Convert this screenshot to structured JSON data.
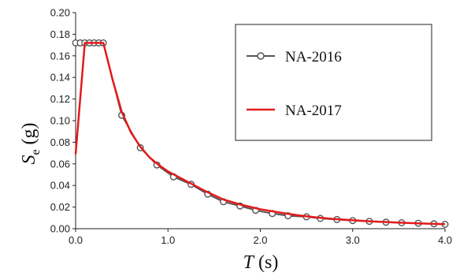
{
  "chart_data": {
    "type": "line",
    "xlabel": {
      "main": "T",
      "unit": " (s)"
    },
    "ylabel": {
      "main": "S",
      "sub": "e",
      "unit": " (g)"
    },
    "xlim": [
      0,
      4.0
    ],
    "ylim": [
      0,
      0.2
    ],
    "xticks": [
      "0.0",
      "1.0",
      "2.0",
      "3.0",
      "4.0"
    ],
    "yticks": [
      "0.00",
      "0.02",
      "0.04",
      "0.06",
      "0.08",
      "0.10",
      "0.12",
      "0.14",
      "0.16",
      "0.18",
      "0.20"
    ],
    "grid": false,
    "legend": "top-right",
    "series": [
      {
        "name": "NA-2016",
        "color": "#555555",
        "marker": "circle",
        "x": [
          0.0,
          0.05,
          0.1,
          0.15,
          0.2,
          0.25,
          0.3,
          0.5,
          0.7,
          0.88,
          1.06,
          1.25,
          1.43,
          1.6,
          1.78,
          1.95,
          2.13,
          2.3,
          2.5,
          2.65,
          2.83,
          3.0,
          3.18,
          3.36,
          3.53,
          3.71,
          3.88,
          4.0
        ],
        "y": [
          0.172,
          0.172,
          0.172,
          0.172,
          0.172,
          0.172,
          0.172,
          0.105,
          0.075,
          0.059,
          0.048,
          0.041,
          0.032,
          0.025,
          0.021,
          0.017,
          0.014,
          0.012,
          0.011,
          0.0095,
          0.0085,
          0.0075,
          0.0068,
          0.006,
          0.0055,
          0.005,
          0.0045,
          0.004
        ]
      },
      {
        "name": "NA-2017",
        "color": "#e31a1c",
        "marker": "none",
        "x": [
          0.0,
          0.1,
          0.3,
          0.4,
          0.5,
          0.6,
          0.7,
          0.8,
          0.9,
          1.0,
          1.2,
          1.4,
          1.6,
          1.8,
          2.0,
          2.2,
          2.4,
          2.6,
          2.8,
          3.0,
          3.2,
          3.4,
          3.6,
          3.8,
          4.0
        ],
        "y": [
          0.069,
          0.172,
          0.172,
          0.138,
          0.108,
          0.089,
          0.076,
          0.066,
          0.059,
          0.053,
          0.044,
          0.035,
          0.027,
          0.022,
          0.018,
          0.015,
          0.0125,
          0.0105,
          0.009,
          0.0078,
          0.0068,
          0.006,
          0.0053,
          0.0047,
          0.0042
        ]
      }
    ]
  }
}
